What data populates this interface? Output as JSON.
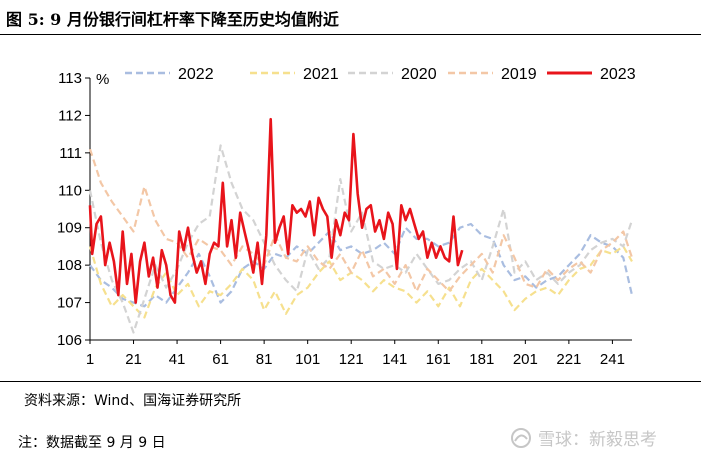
{
  "header": {
    "title": "图 5: 9 月份银行间杠杆率下降至历史均值附近"
  },
  "footer": {
    "source": "资料来源：Wind、国海证券研究所",
    "note": "注：数据截至 9 月 9 日",
    "watermark": "雪球：新毅思考"
  },
  "colors": {
    "s2022": "#a9bde0",
    "s2021": "#f6e08e",
    "s2020": "#d3d3d3",
    "s2019": "#f3c7a6",
    "s2023": "#e8141b"
  },
  "chart_data": {
    "type": "line",
    "ylabel": "%",
    "ylim": [
      106,
      113
    ],
    "yticks": [
      106,
      107,
      108,
      109,
      110,
      111,
      112,
      113
    ],
    "xlim": [
      1,
      250
    ],
    "xticks": [
      1,
      21,
      41,
      61,
      81,
      101,
      121,
      141,
      161,
      181,
      201,
      221,
      241
    ],
    "legend_position": "top",
    "series": [
      {
        "name": "2022",
        "style": "dashed",
        "color": "#a9bde0",
        "x": [
          1,
          6,
          11,
          16,
          21,
          26,
          31,
          36,
          41,
          46,
          51,
          56,
          61,
          66,
          71,
          76,
          81,
          86,
          91,
          96,
          101,
          106,
          111,
          116,
          121,
          126,
          131,
          136,
          141,
          146,
          151,
          156,
          161,
          166,
          171,
          176,
          181,
          186,
          191,
          196,
          201,
          206,
          211,
          216,
          221,
          226,
          231,
          236,
          241,
          246,
          250
        ],
        "y": [
          108.0,
          107.6,
          107.4,
          107.1,
          107.0,
          106.9,
          107.2,
          107.0,
          107.4,
          107.8,
          108.3,
          107.7,
          107.0,
          107.3,
          107.9,
          108.1,
          107.9,
          108.3,
          108.2,
          108.5,
          108.3,
          108.6,
          108.9,
          108.4,
          108.5,
          108.3,
          108.4,
          108.6,
          108.3,
          109.0,
          108.7,
          108.7,
          108.5,
          108.6,
          109.0,
          109.1,
          108.8,
          108.7,
          108.0,
          107.6,
          107.7,
          107.4,
          107.6,
          107.7,
          108.0,
          108.3,
          108.8,
          108.6,
          108.5,
          108.2,
          107.2
        ]
      },
      {
        "name": "2021",
        "style": "dashed",
        "color": "#f6e08e",
        "x": [
          1,
          6,
          11,
          16,
          21,
          26,
          31,
          36,
          41,
          46,
          51,
          56,
          61,
          66,
          71,
          76,
          81,
          86,
          91,
          96,
          101,
          106,
          111,
          116,
          121,
          126,
          131,
          136,
          141,
          146,
          151,
          156,
          161,
          166,
          171,
          176,
          181,
          186,
          191,
          196,
          201,
          206,
          211,
          216,
          221,
          226,
          231,
          236,
          241,
          246,
          250
        ],
        "y": [
          108.5,
          107.5,
          106.9,
          107.2,
          106.9,
          106.6,
          107.4,
          107.8,
          107.2,
          107.5,
          106.9,
          107.3,
          107.2,
          107.5,
          107.9,
          107.6,
          106.8,
          107.3,
          106.7,
          107.2,
          107.4,
          107.8,
          108.1,
          107.6,
          107.8,
          107.6,
          107.3,
          107.6,
          107.4,
          107.3,
          107.0,
          107.3,
          106.9,
          107.4,
          106.9,
          107.6,
          107.9,
          107.6,
          107.3,
          106.8,
          107.1,
          107.3,
          107.4,
          107.2,
          107.6,
          107.9,
          108.0,
          108.4,
          108.3,
          108.5,
          108.1
        ]
      },
      {
        "name": "2020",
        "style": "dashed",
        "color": "#d3d3d3",
        "x": [
          1,
          6,
          11,
          16,
          21,
          26,
          31,
          36,
          41,
          46,
          51,
          56,
          61,
          66,
          71,
          76,
          81,
          86,
          91,
          96,
          101,
          106,
          111,
          116,
          121,
          126,
          131,
          136,
          141,
          146,
          151,
          156,
          161,
          166,
          171,
          176,
          181,
          186,
          191,
          196,
          201,
          206,
          211,
          216,
          221,
          226,
          231,
          236,
          241,
          246,
          250
        ],
        "y": [
          110.0,
          108.6,
          107.6,
          107.0,
          106.2,
          107.1,
          108.0,
          107.4,
          107.9,
          108.6,
          109.1,
          109.3,
          111.2,
          110.2,
          109.5,
          109.2,
          108.6,
          108.0,
          107.6,
          107.3,
          108.4,
          107.9,
          108.2,
          110.3,
          108.9,
          109.4,
          108.1,
          107.9,
          108.0,
          107.8,
          108.3,
          107.9,
          107.5,
          107.6,
          107.9,
          108.1,
          107.6,
          108.5,
          109.5,
          107.8,
          108.1,
          107.6,
          107.8,
          107.5,
          107.8,
          108.0,
          108.4,
          108.6,
          108.7,
          108.5,
          109.2
        ]
      },
      {
        "name": "2019",
        "style": "dashed",
        "color": "#f3c7a6",
        "x": [
          1,
          6,
          11,
          16,
          21,
          26,
          31,
          36,
          41,
          46,
          51,
          56,
          61,
          66,
          71,
          76,
          81,
          86,
          91,
          96,
          101,
          106,
          111,
          116,
          121,
          126,
          131,
          136,
          141,
          146,
          151,
          156,
          161,
          166,
          171,
          176,
          181,
          186,
          191,
          196,
          201,
          206,
          211,
          216,
          221,
          226,
          231,
          236,
          241,
          246,
          250
        ],
        "y": [
          111.1,
          110.2,
          109.7,
          109.3,
          108.9,
          110.1,
          109.2,
          108.7,
          108.6,
          108.2,
          108.7,
          108.5,
          108.4,
          108.0,
          108.5,
          108.3,
          108.0,
          108.8,
          108.2,
          108.1,
          108.5,
          108.1,
          107.9,
          108.3,
          107.8,
          108.4,
          107.7,
          107.9,
          107.5,
          108.0,
          107.3,
          107.9,
          107.6,
          107.3,
          107.7,
          108.0,
          108.3,
          107.8,
          108.8,
          108.2,
          107.5,
          107.4,
          107.9,
          107.6,
          107.9,
          108.1,
          107.8,
          108.4,
          108.6,
          108.9,
          108.2
        ]
      },
      {
        "name": "2023",
        "style": "solid",
        "color": "#e8141b",
        "x": [
          1,
          2,
          4,
          6,
          8,
          10,
          12,
          14,
          16,
          18,
          20,
          22,
          24,
          26,
          28,
          30,
          32,
          34,
          36,
          38,
          40,
          42,
          44,
          46,
          48,
          50,
          52,
          54,
          56,
          58,
          60,
          62,
          64,
          66,
          68,
          70,
          72,
          74,
          76,
          78,
          80,
          82,
          84,
          86,
          88,
          90,
          92,
          94,
          96,
          98,
          100,
          102,
          104,
          106,
          108,
          110,
          112,
          114,
          116,
          118,
          120,
          122,
          124,
          126,
          128,
          130,
          132,
          134,
          136,
          138,
          140,
          142,
          144,
          146,
          148,
          150,
          152,
          154,
          156,
          158,
          160,
          162,
          164,
          166,
          168,
          170,
          172
        ],
        "y": [
          109.6,
          108.3,
          109.1,
          109.3,
          108.0,
          108.6,
          108.1,
          107.2,
          108.9,
          107.5,
          108.3,
          107.0,
          108.1,
          108.6,
          107.7,
          108.2,
          107.4,
          108.4,
          108.0,
          107.2,
          107.0,
          108.9,
          108.4,
          109.0,
          108.3,
          107.8,
          108.1,
          107.5,
          108.3,
          108.6,
          108.5,
          110.2,
          108.5,
          109.2,
          108.2,
          109.4,
          108.9,
          108.4,
          107.8,
          108.6,
          107.5,
          108.8,
          111.9,
          108.6,
          109.0,
          109.3,
          108.3,
          109.6,
          109.4,
          109.5,
          109.3,
          109.7,
          108.8,
          109.8,
          109.5,
          109.3,
          108.2,
          109.2,
          108.8,
          109.4,
          109.2,
          111.5,
          109.9,
          109.0,
          109.5,
          109.6,
          108.9,
          109.2,
          108.7,
          109.4,
          109.1,
          107.9,
          109.6,
          109.2,
          109.5,
          109.1,
          108.7,
          108.9,
          108.2,
          108.6,
          108.2,
          108.5,
          108.2,
          108.1,
          109.3,
          108.0,
          108.4
        ]
      }
    ]
  }
}
